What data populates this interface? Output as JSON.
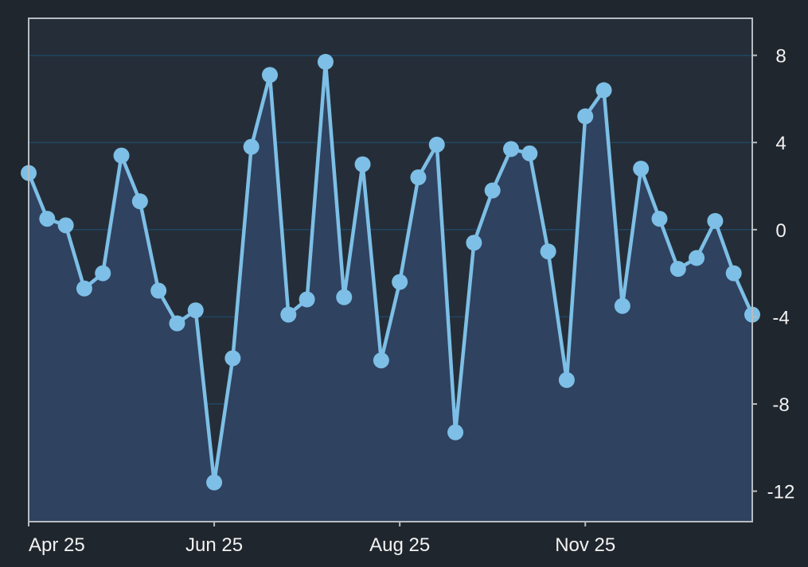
{
  "colors": {
    "background": "#20262d",
    "plot_area": "#252e38",
    "frame": "#b7bcc2",
    "gridline": "#1f4663",
    "line": "#7dbfe6",
    "area_fill": "#2f4260",
    "tick_text": "#f2f2f2"
  },
  "chart_data": {
    "type": "area",
    "title": "",
    "xlabel": "",
    "ylabel": "",
    "y_axis_side": "right",
    "grid": "horizontal",
    "legend": "none",
    "ylim": [
      -13.4,
      9.7
    ],
    "x_ticks": [
      {
        "label": "Apr 25",
        "index": 0
      },
      {
        "label": "Jun 25",
        "index": 10
      },
      {
        "label": "Aug 25",
        "index": 20
      },
      {
        "label": "Nov 25",
        "index": 30
      }
    ],
    "y_ticks": [
      8,
      4,
      0,
      -4,
      -8,
      -12
    ],
    "series": [
      {
        "values": [
          2.6,
          0.5,
          0.2,
          -2.7,
          -2.0,
          3.4,
          1.3,
          -2.8,
          -4.3,
          -3.7,
          -11.6,
          -5.9,
          3.8,
          7.1,
          -3.9,
          -3.2,
          7.7,
          -3.1,
          3.0,
          -6.0,
          -2.4,
          2.4,
          3.9,
          -9.3,
          -0.6,
          1.8,
          3.7,
          3.5,
          -1.0,
          -6.9,
          5.2,
          6.4,
          -3.5,
          2.8,
          0.5,
          -1.8,
          -1.3,
          0.4,
          -2.0,
          -3.9
        ]
      }
    ]
  }
}
